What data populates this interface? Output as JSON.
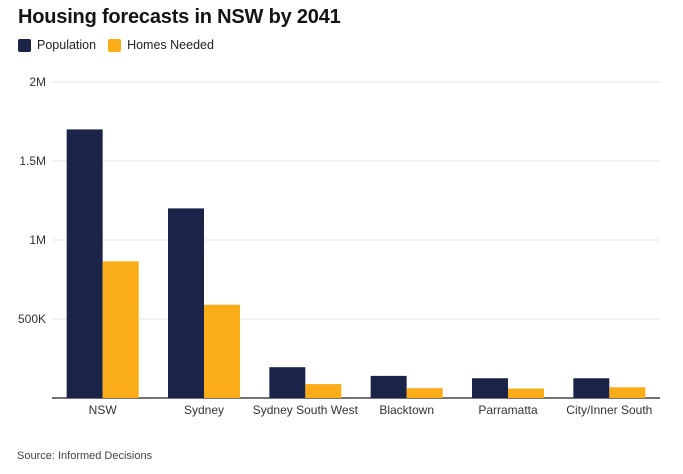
{
  "chart_data": {
    "type": "bar",
    "title": "Housing forecasts in NSW by 2041",
    "categories": [
      "NSW",
      "Sydney",
      "Sydney South West",
      "Blacktown",
      "Parramatta",
      "City/Inner South"
    ],
    "series": [
      {
        "name": "Population",
        "color": "#1b2448",
        "values": [
          1700000,
          1200000,
          195000,
          140000,
          125000,
          125000
        ]
      },
      {
        "name": "Homes Needed",
        "color": "#fbac19",
        "values": [
          865000,
          590000,
          88000,
          62000,
          60000,
          68000
        ]
      }
    ],
    "ylim": [
      0,
      2000000
    ],
    "yticks": [
      {
        "value": 500000,
        "label": "500K"
      },
      {
        "value": 1000000,
        "label": "1M"
      },
      {
        "value": 1500000,
        "label": "1.5M"
      },
      {
        "value": 2000000,
        "label": "2M"
      }
    ],
    "grid": true,
    "legend_position": "top-left",
    "source": "Source: Informed Decisions"
  }
}
